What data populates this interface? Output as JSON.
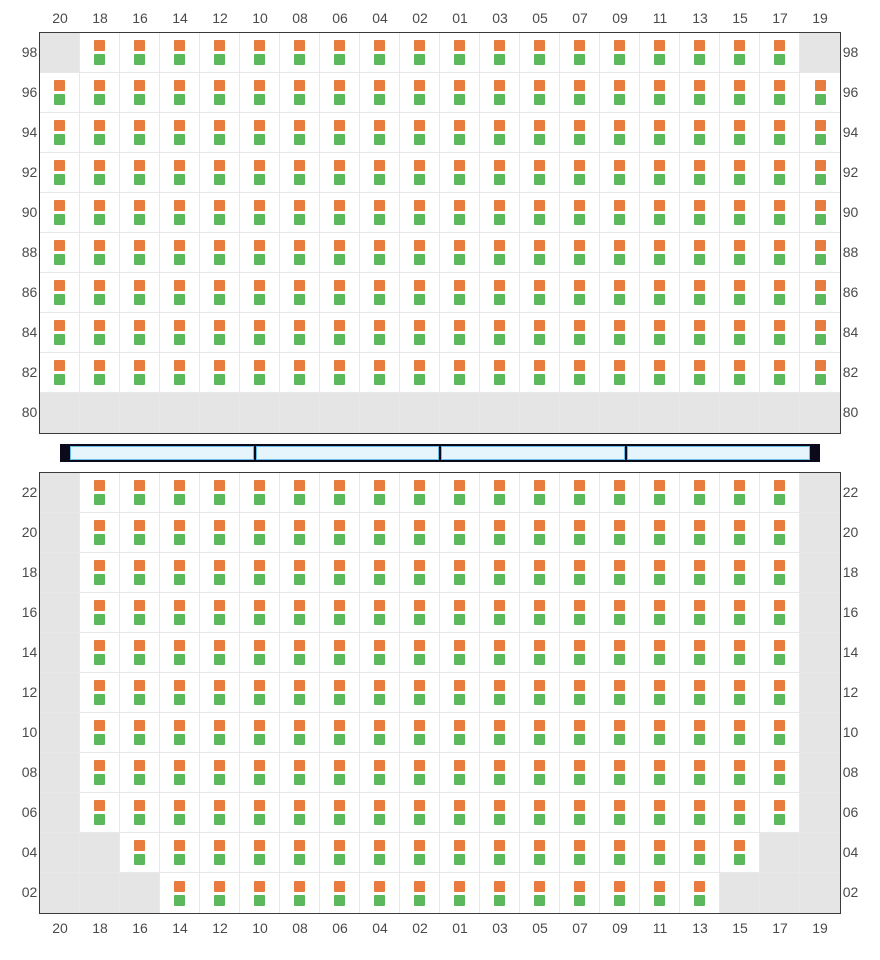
{
  "colors": {
    "seat_top": "#e87b3e",
    "seat_bottom": "#5cb85c",
    "empty_cell": "#e5e5e5",
    "grid_border": "#3a3a3a",
    "cell_border": "#e8e8e8",
    "divider_bg": "#0a0a1a",
    "divider_seg_fill": "#e6f4fb",
    "divider_seg_border": "#6bbde8",
    "label_color": "#4a4a4a"
  },
  "columns": [
    "20",
    "18",
    "16",
    "14",
    "12",
    "10",
    "08",
    "06",
    "04",
    "02",
    "01",
    "03",
    "05",
    "07",
    "09",
    "11",
    "13",
    "15",
    "17",
    "19"
  ],
  "upper": {
    "rows": [
      "98",
      "96",
      "94",
      "92",
      "90",
      "88",
      "86",
      "84",
      "82",
      "80"
    ],
    "empty_cells": [
      [
        0,
        0
      ],
      [
        0,
        19
      ],
      [
        9,
        0
      ],
      [
        9,
        1
      ],
      [
        9,
        2
      ],
      [
        9,
        3
      ],
      [
        9,
        4
      ],
      [
        9,
        5
      ],
      [
        9,
        6
      ],
      [
        9,
        7
      ],
      [
        9,
        8
      ],
      [
        9,
        9
      ],
      [
        9,
        10
      ],
      [
        9,
        11
      ],
      [
        9,
        12
      ],
      [
        9,
        13
      ],
      [
        9,
        14
      ],
      [
        9,
        15
      ],
      [
        9,
        16
      ],
      [
        9,
        17
      ],
      [
        9,
        18
      ],
      [
        9,
        19
      ]
    ]
  },
  "divider_segments": 4,
  "lower": {
    "rows": [
      "22",
      "20",
      "18",
      "16",
      "14",
      "12",
      "10",
      "08",
      "06",
      "04",
      "02"
    ],
    "empty_cells": [
      [
        0,
        0
      ],
      [
        0,
        19
      ],
      [
        1,
        0
      ],
      [
        1,
        19
      ],
      [
        2,
        0
      ],
      [
        2,
        19
      ],
      [
        3,
        0
      ],
      [
        3,
        19
      ],
      [
        4,
        0
      ],
      [
        4,
        19
      ],
      [
        5,
        0
      ],
      [
        5,
        19
      ],
      [
        6,
        0
      ],
      [
        6,
        19
      ],
      [
        7,
        0
      ],
      [
        7,
        19
      ],
      [
        8,
        0
      ],
      [
        8,
        19
      ],
      [
        9,
        0
      ],
      [
        9,
        1
      ],
      [
        9,
        18
      ],
      [
        9,
        19
      ],
      [
        10,
        0
      ],
      [
        10,
        1
      ],
      [
        10,
        2
      ],
      [
        10,
        17
      ],
      [
        10,
        18
      ],
      [
        10,
        19
      ]
    ]
  }
}
